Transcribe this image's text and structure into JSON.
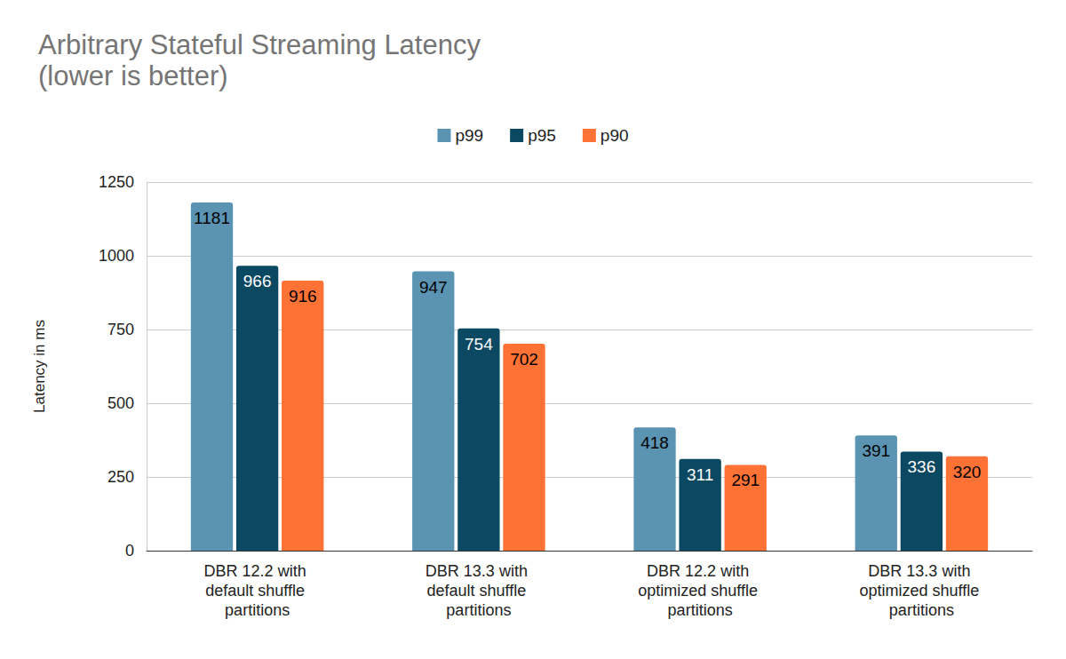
{
  "chart_data": {
    "type": "bar",
    "title": "Arbitrary Stateful Streaming Latency",
    "subtitle": "(lower is better)",
    "ylabel": "Latency in ms",
    "categories": [
      "DBR 12.2 with default shuffle partitions",
      "DBR 13.3 with default shuffle partitions",
      "DBR 12.2 with optimized shuffle partitions",
      "DBR 13.3 with optimized shuffle partitions"
    ],
    "series": [
      {
        "name": "p99",
        "color": "#5b94b3",
        "values": [
          1181,
          947,
          418,
          391
        ]
      },
      {
        "name": "p95",
        "color": "#0b4862",
        "values": [
          966,
          754,
          311,
          336
        ]
      },
      {
        "name": "p90",
        "color": "#ff7236",
        "values": [
          916,
          702,
          291,
          320
        ]
      }
    ],
    "ylim": [
      0,
      1250
    ],
    "yticks": [
      0,
      250,
      500,
      750,
      1000,
      1250
    ],
    "grid": true,
    "legend": "top",
    "data_labels": true
  }
}
